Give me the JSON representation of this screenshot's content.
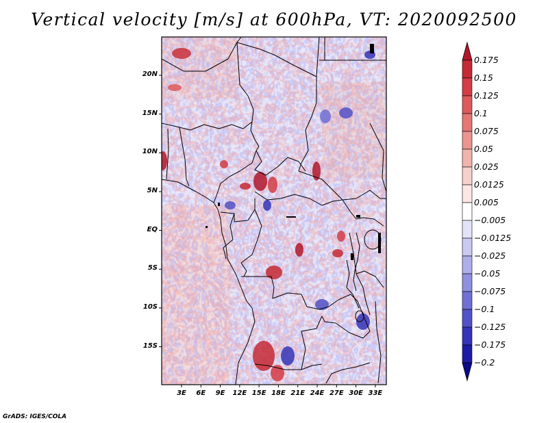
{
  "title": "Vertical velocity [m/s] at 600hPa, VT: 2020092500",
  "credit": "GrADS: IGES/COLA",
  "map": {
    "variable": "Vertical velocity",
    "units": "m/s",
    "level": "600hPa",
    "valid_time": "2020092500",
    "region": "Central Africa",
    "lat_range": [
      -20,
      25
    ],
    "lon_range": [
      0,
      35
    ]
  },
  "y_ticks": [
    {
      "label": "20N",
      "lat": 20
    },
    {
      "label": "15N",
      "lat": 15
    },
    {
      "label": "10N",
      "lat": 10
    },
    {
      "label": "5N",
      "lat": 5
    },
    {
      "label": "EQ",
      "lat": 0
    },
    {
      "label": "5S",
      "lat": -5
    },
    {
      "label": "10S",
      "lat": -10
    },
    {
      "label": "15S",
      "lat": -15
    }
  ],
  "x_ticks": [
    {
      "label": "3E",
      "lon": 3
    },
    {
      "label": "6E",
      "lon": 6
    },
    {
      "label": "9E",
      "lon": 9
    },
    {
      "label": "12E",
      "lon": 12
    },
    {
      "label": "15E",
      "lon": 15
    },
    {
      "label": "18E",
      "lon": 18
    },
    {
      "label": "21E",
      "lon": 21
    },
    {
      "label": "24E",
      "lon": 24
    },
    {
      "label": "27E",
      "lon": 27
    },
    {
      "label": "30E",
      "lon": 30
    },
    {
      "label": "33E",
      "lon": 33
    }
  ],
  "colorbar": {
    "labels": [
      "0.175",
      "0.15",
      "0.125",
      "0.1",
      "0.075",
      "0.05",
      "0.025",
      "0.0125",
      "0.005",
      "−0.005",
      "−0.0125",
      "−0.025",
      "−0.05",
      "−0.075",
      "−0.1",
      "−0.125",
      "−0.175",
      "−0.2"
    ],
    "colors": [
      "#b2182b",
      "#c52a35",
      "#d43d45",
      "#de5a5c",
      "#e57674",
      "#ec9490",
      "#f2b3ad",
      "#f7d0cb",
      "#fbe7e4",
      "#ffffff",
      "#e3e3f8",
      "#c9c9f2",
      "#aeaeea",
      "#9090e0",
      "#7070d5",
      "#5252c8",
      "#3535b8",
      "#1c1ca5",
      "#0a0a8c"
    ]
  }
}
